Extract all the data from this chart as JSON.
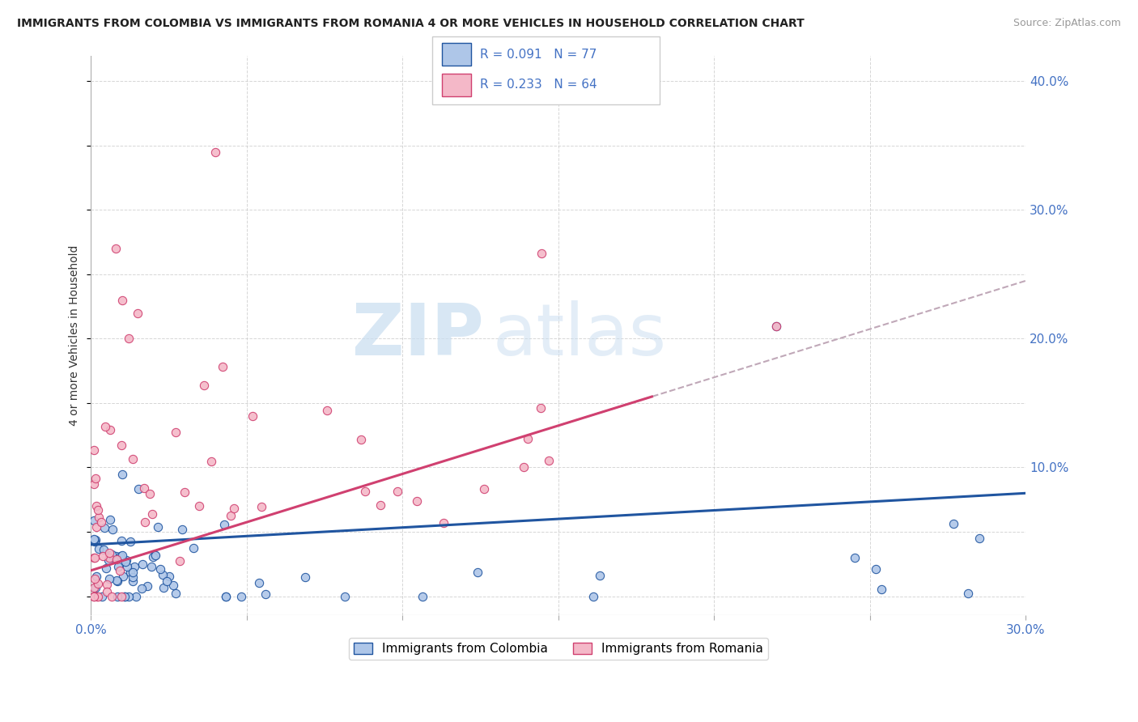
{
  "title": "IMMIGRANTS FROM COLOMBIA VS IMMIGRANTS FROM ROMANIA 4 OR MORE VEHICLES IN HOUSEHOLD CORRELATION CHART",
  "source": "Source: ZipAtlas.com",
  "colombia_R": 0.091,
  "colombia_N": 77,
  "romania_R": 0.233,
  "romania_N": 64,
  "colombia_color": "#aec6e8",
  "romania_color": "#f4b8c8",
  "colombia_line_color": "#2055a0",
  "romania_line_color": "#d04070",
  "watermark_zip": "ZIP",
  "watermark_atlas": "atlas",
  "legend_colombia": "Immigrants from Colombia",
  "legend_romania": "Immigrants from Romania",
  "xlim": [
    0.0,
    0.3
  ],
  "ylim": [
    -0.015,
    0.42
  ],
  "yticks": [
    0.0,
    0.1,
    0.2,
    0.3,
    0.4
  ],
  "ytick_labels": [
    "",
    "10.0%",
    "20.0%",
    "30.0%",
    "40.0%"
  ],
  "xtick_labels_show": [
    "0.0%",
    "30.0%"
  ]
}
